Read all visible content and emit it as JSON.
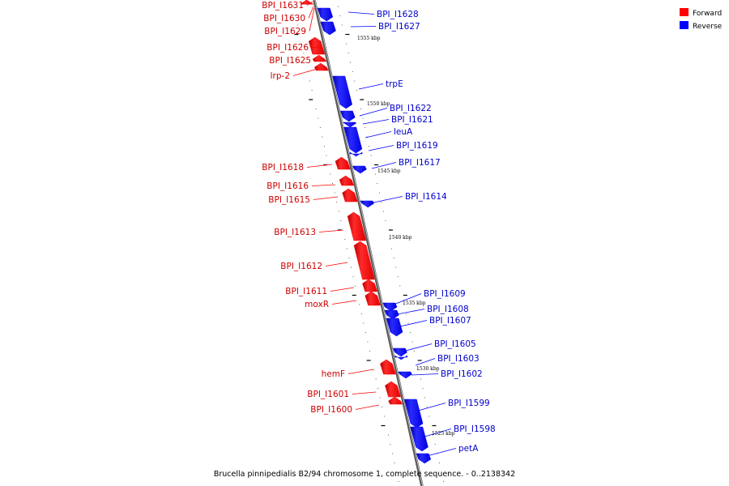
{
  "caption": "Brucella pinnipedialis B2/94 chromosome 1, complete sequence. - 0..2138342",
  "legend": [
    {
      "label": "Forward",
      "color": "#ff0000"
    },
    {
      "label": "Reverse",
      "color": "#0000ff"
    }
  ],
  "kbp_labels": [
    "1555 kbp",
    "1550 kbp",
    "1545 kbp",
    "1540 kbp",
    "1535 kbp",
    "1530 kbp",
    "1525 kbp"
  ],
  "genes": [
    {
      "name": "BPI_I1631",
      "strand": "forward"
    },
    {
      "name": "BPI_I1630",
      "strand": "forward"
    },
    {
      "name": "BPI_I1629",
      "strand": "forward"
    },
    {
      "name": "BPI_I1628",
      "strand": "reverse"
    },
    {
      "name": "BPI_I1627",
      "strand": "reverse"
    },
    {
      "name": "BPI_I1626",
      "strand": "forward"
    },
    {
      "name": "BPI_I1625",
      "strand": "forward"
    },
    {
      "name": "lrp-2",
      "strand": "forward"
    },
    {
      "name": "trpE",
      "strand": "reverse"
    },
    {
      "name": "BPI_I1622",
      "strand": "reverse"
    },
    {
      "name": "BPI_I1621",
      "strand": "reverse"
    },
    {
      "name": "leuA",
      "strand": "reverse"
    },
    {
      "name": "BPI_I1619",
      "strand": "reverse"
    },
    {
      "name": "BPI_I1618",
      "strand": "forward"
    },
    {
      "name": "BPI_I1617",
      "strand": "reverse"
    },
    {
      "name": "BPI_I1616",
      "strand": "forward"
    },
    {
      "name": "BPI_I1615",
      "strand": "forward"
    },
    {
      "name": "BPI_I1614",
      "strand": "reverse"
    },
    {
      "name": "BPI_I1613",
      "strand": "forward"
    },
    {
      "name": "BPI_I1612",
      "strand": "forward"
    },
    {
      "name": "BPI_I1611",
      "strand": "forward"
    },
    {
      "name": "moxR",
      "strand": "forward"
    },
    {
      "name": "BPI_I1609",
      "strand": "reverse"
    },
    {
      "name": "BPI_I1608",
      "strand": "reverse"
    },
    {
      "name": "BPI_I1607",
      "strand": "reverse"
    },
    {
      "name": "BPI_I1605",
      "strand": "reverse"
    },
    {
      "name": "BPI_I1603",
      "strand": "reverse"
    },
    {
      "name": "hemF",
      "strand": "forward"
    },
    {
      "name": "BPI_I1602",
      "strand": "reverse"
    },
    {
      "name": "BPI_I1601",
      "strand": "forward"
    },
    {
      "name": "BPI_I1600",
      "strand": "forward"
    },
    {
      "name": "BPI_I1599",
      "strand": "reverse"
    },
    {
      "name": "BPI_I1598",
      "strand": "reverse"
    },
    {
      "name": "petA",
      "strand": "reverse"
    }
  ]
}
